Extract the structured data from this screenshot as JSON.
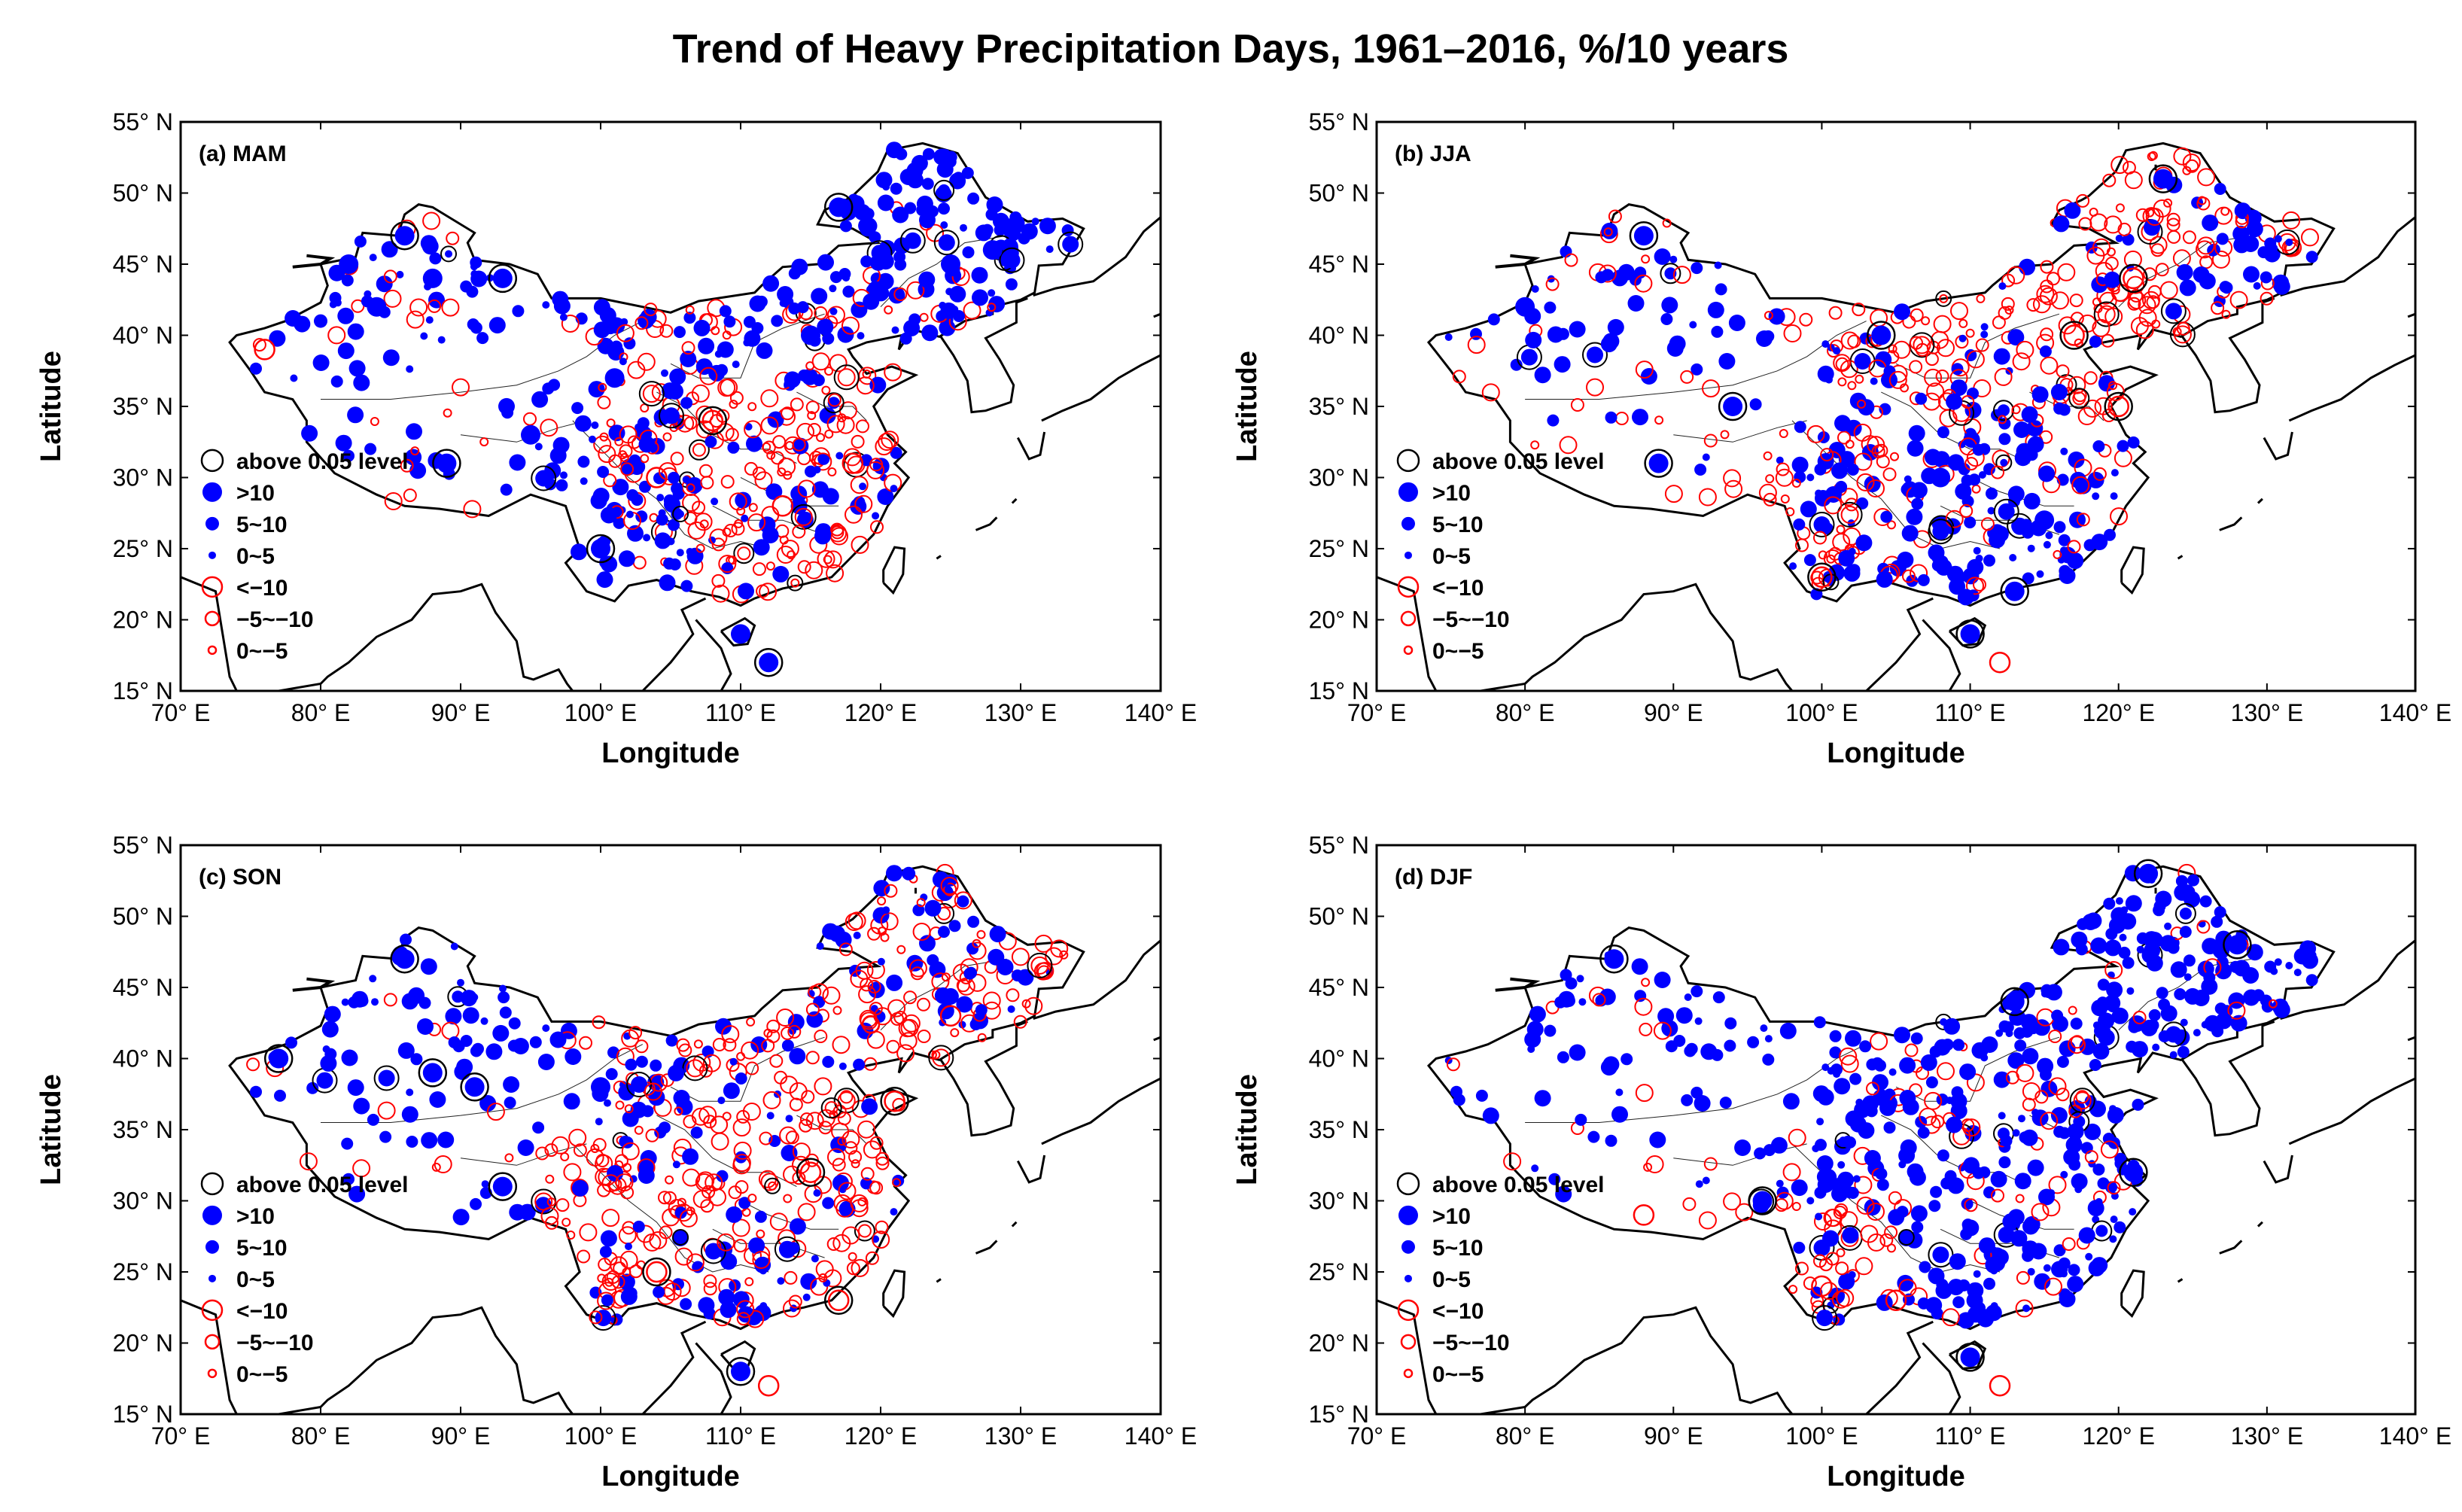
{
  "figure": {
    "title": "Trend of Heavy Precipitation Days, 1961–2016, %/10 years"
  },
  "chart_data": [
    {
      "type": "scatter",
      "panel": "(a) MAM",
      "xlabel": "Longitude",
      "ylabel": "Latitude",
      "xlim": [
        70,
        140
      ],
      "ylim": [
        15,
        55
      ],
      "xticks": [
        "70° E",
        "80° E",
        "90° E",
        "100° E",
        "110° E",
        "120° E",
        "130° E",
        "140° E"
      ],
      "yticks": [
        "15° N",
        "20° N",
        "25° N",
        "30° N",
        "35° N",
        "40° N",
        "45° N",
        "50° N",
        "55° N"
      ],
      "legend": [
        "above 0.05 level",
        ">10",
        "5~10",
        "0~5",
        "<−10",
        "−5~−10",
        "0~−5"
      ],
      "pattern": "Positive trends dominate northwest and northeast; negative trends common in south and east-central",
      "stations": [
        {
          "lon": 82,
          "lat": 45,
          "cls": ">10"
        },
        {
          "lon": 86,
          "lat": 47,
          "cls": ">10",
          "sig": true
        },
        {
          "lon": 88,
          "lat": 44,
          "cls": ">10"
        },
        {
          "lon": 80,
          "lat": 41,
          "cls": "5~10"
        },
        {
          "lon": 84,
          "lat": 42,
          "cls": ">10"
        },
        {
          "lon": 76,
          "lat": 39,
          "cls": "<−10"
        },
        {
          "lon": 93,
          "lat": 44,
          "cls": ">10",
          "sig": true
        },
        {
          "lon": 89,
          "lat": 31,
          "cls": ">10",
          "sig": true
        },
        {
          "lon": 95,
          "lat": 33,
          "cls": ">10"
        },
        {
          "lon": 101,
          "lat": 37,
          "cls": ">10"
        },
        {
          "lon": 100,
          "lat": 25,
          "cls": ">10",
          "sig": true
        },
        {
          "lon": 104,
          "lat": 30,
          "cls": "<−10"
        },
        {
          "lon": 108,
          "lat": 34,
          "cls": "<−10",
          "sig": true
        },
        {
          "lon": 112,
          "lat": 17,
          "cls": ">10",
          "sig": true
        },
        {
          "lon": 110,
          "lat": 19,
          "cls": ">10"
        },
        {
          "lon": 117,
          "lat": 49,
          "cls": ">10",
          "sig": true
        },
        {
          "lon": 125,
          "lat": 45,
          "cls": ">10"
        },
        {
          "lon": 128,
          "lat": 46,
          "cls": ">10"
        },
        {
          "lon": 115,
          "lat": 40,
          "cls": ">10"
        },
        {
          "lon": 113,
          "lat": 28,
          "cls": "<−10"
        },
        {
          "lon": 118,
          "lat": 31,
          "cls": "<−10"
        }
      ]
    },
    {
      "type": "scatter",
      "panel": "(b) JJA",
      "xlabel": "Longitude",
      "ylabel": "Latitude",
      "xlim": [
        70,
        140
      ],
      "ylim": [
        15,
        55
      ],
      "xticks": [
        "70° E",
        "80° E",
        "90° E",
        "100° E",
        "110° E",
        "120° E",
        "130° E",
        "140° E"
      ],
      "yticks": [
        "15° N",
        "20° N",
        "25° N",
        "30° N",
        "35° N",
        "40° N",
        "45° N",
        "50° N",
        "55° N"
      ],
      "legend": [
        "above 0.05 level",
        ">10",
        "5~10",
        "0~5",
        "<−10",
        "−5~−10",
        "0~−5"
      ],
      "pattern": "Positive trends in south and northwest; negative trends in north China and Tibetan plateau",
      "stations": [
        {
          "lon": 89,
          "lat": 31,
          "cls": ">10",
          "sig": true
        },
        {
          "lon": 88,
          "lat": 47,
          "cls": ">10",
          "sig": true
        },
        {
          "lon": 123,
          "lat": 51,
          "cls": ">10",
          "sig": true
        },
        {
          "lon": 117,
          "lat": 40,
          "cls": "<−10",
          "sig": true
        },
        {
          "lon": 121,
          "lat": 44,
          "cls": "<−10",
          "sig": true
        },
        {
          "lon": 100,
          "lat": 23,
          "cls": "<−10",
          "sig": true
        },
        {
          "lon": 94,
          "lat": 35,
          "cls": ">10",
          "sig": true
        },
        {
          "lon": 104,
          "lat": 40,
          "cls": ">10",
          "sig": true
        },
        {
          "lon": 110,
          "lat": 19,
          "cls": ">10",
          "sig": true
        },
        {
          "lon": 113,
          "lat": 22,
          "cls": ">10",
          "sig": true
        },
        {
          "lon": 112,
          "lat": 17,
          "cls": "<−10"
        },
        {
          "lon": 120,
          "lat": 35,
          "cls": "<−10",
          "sig": true
        },
        {
          "lon": 115,
          "lat": 27,
          "cls": ">10"
        },
        {
          "lon": 108,
          "lat": 30,
          "cls": ">10"
        },
        {
          "lon": 80,
          "lat": 42,
          "cls": ">10"
        }
      ]
    },
    {
      "type": "scatter",
      "panel": "(c) SON",
      "xlabel": "Longitude",
      "ylabel": "Latitude",
      "xlim": [
        70,
        140
      ],
      "ylim": [
        15,
        55
      ],
      "xticks": [
        "70° E",
        "80° E",
        "90° E",
        "100° E",
        "110° E",
        "120° E",
        "130° E",
        "140° E"
      ],
      "yticks": [
        "15° N",
        "20° N",
        "25° N",
        "30° N",
        "35° N",
        "40° N",
        "45° N",
        "50° N",
        "55° N"
      ],
      "legend": [
        "above 0.05 level",
        ">10",
        "5~10",
        "0~5",
        "<−10",
        "−5~−10",
        "0~−5"
      ],
      "pattern": "Positive trends in northwest and Xinjiang; widespread negative trends in central and northeast China",
      "stations": [
        {
          "lon": 86,
          "lat": 47,
          "cls": ">10",
          "sig": true
        },
        {
          "lon": 88,
          "lat": 39,
          "cls": ">10",
          "sig": true
        },
        {
          "lon": 91,
          "lat": 38,
          "cls": ">10",
          "sig": true
        },
        {
          "lon": 77,
          "lat": 40,
          "cls": ">10",
          "sig": true
        },
        {
          "lon": 93,
          "lat": 31,
          "cls": ">10",
          "sig": true
        },
        {
          "lon": 104,
          "lat": 25,
          "cls": "<−10",
          "sig": true
        },
        {
          "lon": 110,
          "lat": 18,
          "cls": ">10",
          "sig": true
        },
        {
          "lon": 112,
          "lat": 17,
          "cls": "<−10"
        },
        {
          "lon": 121,
          "lat": 37,
          "cls": "<−10",
          "sig": true
        },
        {
          "lon": 117,
          "lat": 23,
          "cls": "<−10",
          "sig": true
        },
        {
          "lon": 115,
          "lat": 32,
          "cls": "<−10",
          "sig": true
        },
        {
          "lon": 125,
          "lat": 43,
          "cls": "<−10"
        },
        {
          "lon": 122,
          "lat": 53,
          "cls": "5~10"
        },
        {
          "lon": 100,
          "lat": 38,
          "cls": ">10"
        }
      ]
    },
    {
      "type": "scatter",
      "panel": "(d) DJF",
      "xlabel": "Longitude",
      "ylabel": "Latitude",
      "xlim": [
        70,
        140
      ],
      "ylim": [
        15,
        55
      ],
      "xticks": [
        "70° E",
        "80° E",
        "90° E",
        "100° E",
        "110° E",
        "120° E",
        "130° E",
        "140° E"
      ],
      "yticks": [
        "15° N",
        "20° N",
        "25° N",
        "30° N",
        "35° N",
        "40° N",
        "45° N",
        "50° N",
        "55° N"
      ],
      "legend": [
        "above 0.05 level",
        ">10",
        "5~10",
        "0~5",
        "<−10",
        "−5~−10",
        "0~−5"
      ],
      "pattern": "Positive trends dominate almost everywhere; few negative trends in southwest and north-central China",
      "stations": [
        {
          "lon": 122,
          "lat": 53,
          "cls": ">10",
          "sig": true
        },
        {
          "lon": 86,
          "lat": 47,
          "cls": ">10",
          "sig": true
        },
        {
          "lon": 96,
          "lat": 30,
          "cls": ">10",
          "sig": true
        },
        {
          "lon": 110,
          "lat": 19,
          "cls": ">10",
          "sig": true
        },
        {
          "lon": 112,
          "lat": 17,
          "cls": "<−10"
        },
        {
          "lon": 128,
          "lat": 48,
          "cls": ">10",
          "sig": true
        },
        {
          "lon": 121,
          "lat": 32,
          "cls": ">10",
          "sig": true
        },
        {
          "lon": 113,
          "lat": 44,
          "cls": ">10",
          "sig": true
        },
        {
          "lon": 100,
          "lat": 24,
          "cls": "<−10"
        },
        {
          "lon": 105,
          "lat": 23,
          "cls": "<−10"
        },
        {
          "lon": 88,
          "lat": 29,
          "cls": "<−10"
        }
      ]
    }
  ]
}
